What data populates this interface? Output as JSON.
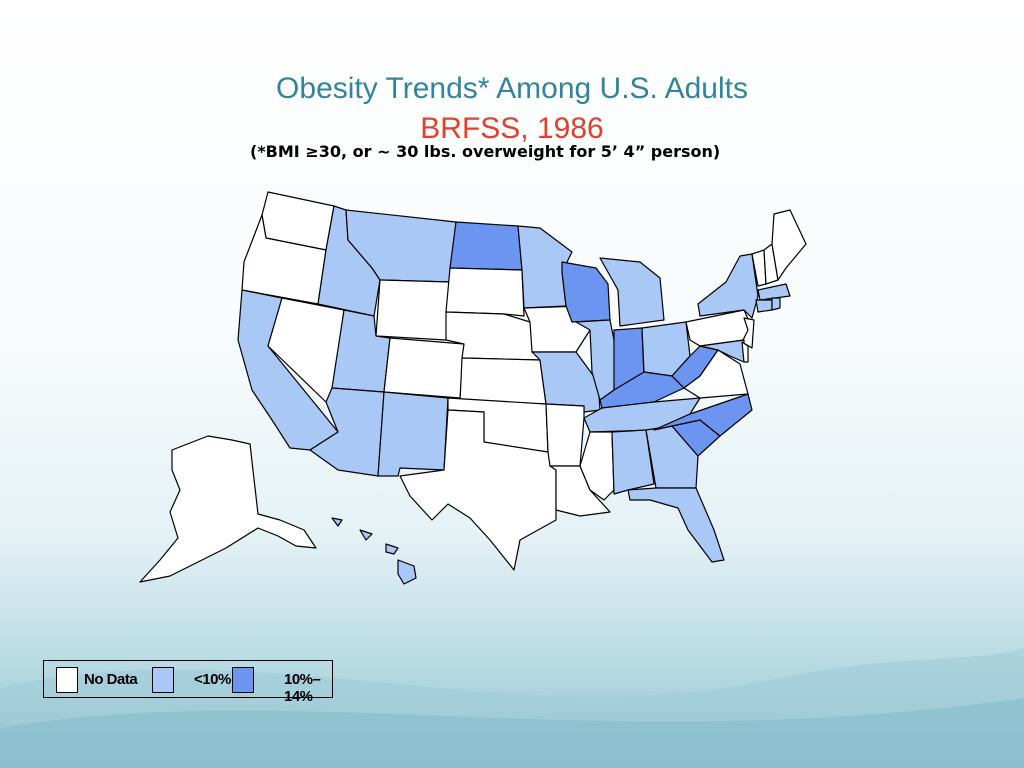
{
  "title": "Obesity Trends* Among U.S. Adults",
  "subtitle": "BRFSS, 1986",
  "note": "(*BMI ≥30, or ~ 30 lbs. overweight for 5’ 4” person)",
  "colors": {
    "no_data": "#ffffff",
    "lt10": "#a9c8f6",
    "r10_14": "#6b95f0",
    "title": "#31849b",
    "subtitle": "#e2402c"
  },
  "legend": [
    {
      "label": "No Data",
      "color": "#ffffff"
    },
    {
      "label": "<10%",
      "color": "#a9c8f6"
    },
    {
      "label": "10%–14%",
      "color": "#6b95f0"
    }
  ],
  "states": {
    "no_data": [
      "WA",
      "OR",
      "NV",
      "WY",
      "SD",
      "NE",
      "CO",
      "KS",
      "OK",
      "TX",
      "IA",
      "AR",
      "LA",
      "MS",
      "VA",
      "PA",
      "NJ",
      "VT",
      "NH",
      "ME",
      "DE",
      "AK"
    ],
    "lt10": [
      "CA",
      "ID",
      "MT",
      "UT",
      "AZ",
      "NM",
      "MN",
      "MO",
      "IL",
      "MI",
      "OH",
      "TN",
      "AL",
      "GA",
      "FL",
      "NY",
      "MA",
      "CT",
      "RI",
      "MD",
      "HI"
    ],
    "r10_14": [
      "ND",
      "WI",
      "IN",
      "KY",
      "WV",
      "NC",
      "SC"
    ]
  }
}
